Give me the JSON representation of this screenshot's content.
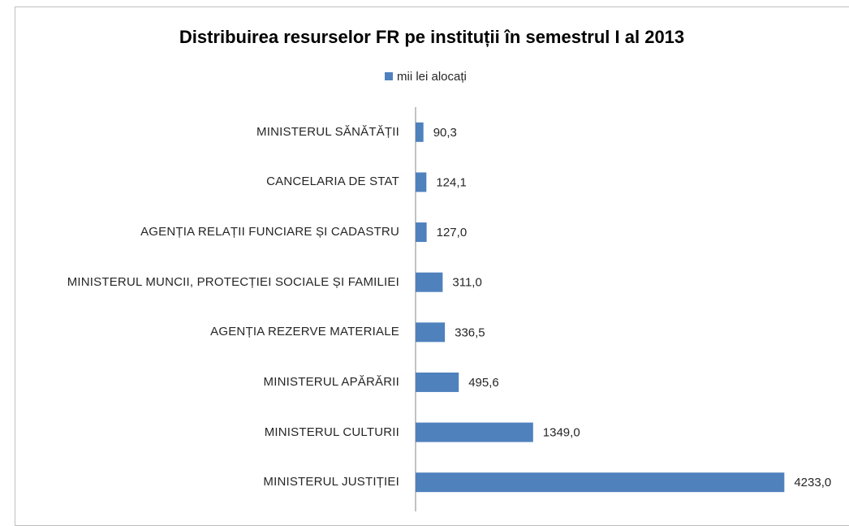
{
  "chart_data": {
    "type": "bar",
    "orientation": "horizontal",
    "title": "Distribuirea resurselor FR pe instituții în semestrul I al 2013",
    "categories": [
      "MINISTERUL SĂNĂTĂȚII",
      "CANCELARIA DE STAT",
      "AGENȚIA RELAȚII FUNCIARE ȘI CADASTRU",
      "MINISTERUL MUNCII, PROTECȚIEI SOCIALE ȘI FAMILIEI",
      "AGENȚIA REZERVE MATERIALE",
      "MINISTERUL APĂRĂRII",
      "MINISTERUL CULTURII",
      "MINISTERUL JUSTIȚIEI"
    ],
    "series": [
      {
        "name": "mii lei alocați",
        "color": "#4f81bd",
        "values": [
          90.3,
          124.1,
          127.0,
          311.0,
          336.5,
          495.6,
          1349.0,
          4233.0
        ],
        "value_labels": [
          "90,3",
          "124,1",
          "127,0",
          "311,0",
          "336,5",
          "495,6",
          "1349,0",
          "4233,0"
        ]
      }
    ],
    "xlim": [
      0,
      4500
    ],
    "legend": "top"
  }
}
